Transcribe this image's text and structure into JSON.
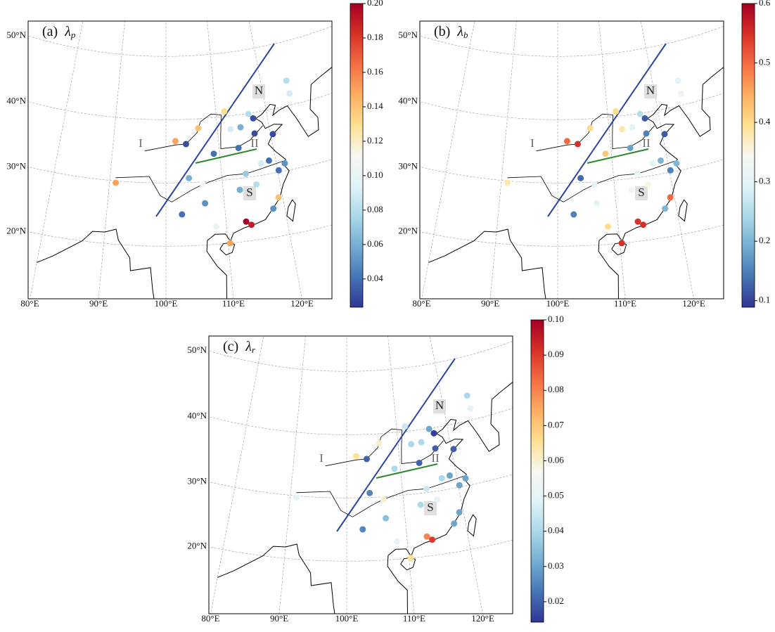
{
  "panels": [
    {
      "label": "(a)",
      "symbol": "λ",
      "subscript": "p",
      "clim": [
        0.0236,
        0.2
      ],
      "cticks": [
        0.04,
        0.06,
        0.08,
        {
          "value": 0.1,
          "label": "0.10"
        },
        0.12,
        0.14,
        0.16,
        0.18,
        {
          "value": 0.2,
          "label": "0.20"
        }
      ],
      "values": [
        0.08,
        0.09,
        0.08,
        0.03,
        0.06,
        0.09,
        0.13,
        0.14,
        0.03,
        0.15,
        0.15,
        0.04,
        0.04,
        0.03,
        0.03,
        0.04,
        0.05,
        0.04,
        0.09,
        0.07,
        0.06,
        0.11,
        0.05,
        0.04,
        0.1,
        0.2,
        0.19,
        0.14,
        0.05,
        0.15,
        0.06,
        0.08
      ]
    },
    {
      "label": "(b)",
      "symbol": "λ",
      "subscript": "b",
      "clim": [
        0.089,
        0.6
      ],
      "cticks": [
        0.1,
        0.2,
        0.3,
        0.4,
        0.5,
        0.6
      ],
      "values": [
        0.3,
        0.32,
        0.25,
        0.12,
        0.3,
        0.38,
        0.4,
        0.4,
        0.55,
        0.5,
        0.38,
        0.42,
        0.18,
        0.15,
        0.12,
        0.2,
        0.2,
        0.15,
        0.3,
        0.32,
        0.13,
        0.3,
        0.3,
        0.15,
        0.4,
        0.55,
        0.55,
        0.5,
        0.2,
        0.55,
        0.33,
        0.35
      ]
    },
    {
      "label": "(c)",
      "symbol": "λ",
      "subscript": "r",
      "clim": [
        0.0142,
        0.1
      ],
      "cticks": [
        0.02,
        0.03,
        0.04,
        0.05,
        0.06,
        0.07,
        0.08,
        0.09,
        {
          "value": 0.1,
          "label": "0.10"
        }
      ],
      "values": [
        0.04,
        0.05,
        0.03,
        0.015,
        0.04,
        0.04,
        0.045,
        0.06,
        0.02,
        0.065,
        0.05,
        0.04,
        0.02,
        0.02,
        0.02,
        0.03,
        0.03,
        0.03,
        0.04,
        0.045,
        0.025,
        0.06,
        0.035,
        0.025,
        0.05,
        0.08,
        0.09,
        0.03,
        0.03,
        0.065,
        0.04,
        0.05
      ]
    }
  ],
  "lon_ticks": [
    {
      "value": 80,
      "label": "80°E"
    },
    {
      "value": 90,
      "label": "90°E"
    },
    {
      "value": 100,
      "label": "100°E"
    },
    {
      "value": 110,
      "label": "110°E"
    },
    {
      "value": 120,
      "label": "120°E"
    }
  ],
  "lat_ticks": [
    {
      "value": 20,
      "label": "20°N"
    },
    {
      "value": 30,
      "label": "30°N"
    },
    {
      "value": 40,
      "label": "40°N"
    },
    {
      "value": 50,
      "label": "50°N"
    }
  ],
  "regions": [
    "N",
    "S",
    "I",
    "II"
  ],
  "stations": [
    {
      "lon": 125.3,
      "lat": 43.9
    },
    {
      "lon": 125.3,
      "lat": 41.8
    },
    {
      "lon": 116.4,
      "lat": 39.9
    },
    {
      "lon": 117.2,
      "lat": 39.1
    },
    {
      "lon": 114.5,
      "lat": 38.0
    },
    {
      "lon": 112.5,
      "lat": 37.9
    },
    {
      "lon": 111.7,
      "lat": 40.8
    },
    {
      "lon": 106.3,
      "lat": 38.5
    },
    {
      "lon": 103.8,
      "lat": 36.1
    },
    {
      "lon": 101.8,
      "lat": 36.6
    },
    {
      "lon": 91.1,
      "lat": 29.7
    },
    {
      "lon": 108.9,
      "lat": 34.3
    },
    {
      "lon": 113.6,
      "lat": 34.8
    },
    {
      "lon": 117.0,
      "lat": 36.7
    },
    {
      "lon": 120.4,
      "lat": 36.1
    },
    {
      "lon": 118.8,
      "lat": 32.1
    },
    {
      "lon": 121.5,
      "lat": 31.2
    },
    {
      "lon": 120.2,
      "lat": 30.3
    },
    {
      "lon": 117.3,
      "lat": 31.9
    },
    {
      "lon": 114.3,
      "lat": 30.6
    },
    {
      "lon": 104.1,
      "lat": 30.7
    },
    {
      "lon": 106.5,
      "lat": 29.6
    },
    {
      "lon": 106.7,
      "lat": 26.6
    },
    {
      "lon": 102.7,
      "lat": 25.0
    },
    {
      "lon": 108.3,
      "lat": 22.8
    },
    {
      "lon": 113.3,
      "lat": 23.1
    },
    {
      "lon": 114.1,
      "lat": 22.5
    },
    {
      "lon": 119.3,
      "lat": 26.1
    },
    {
      "lon": 118.1,
      "lat": 24.5
    },
    {
      "lon": 110.3,
      "lat": 20.0
    },
    {
      "lon": 112.9,
      "lat": 28.2
    },
    {
      "lon": 115.9,
      "lat": 28.7
    }
  ]
}
